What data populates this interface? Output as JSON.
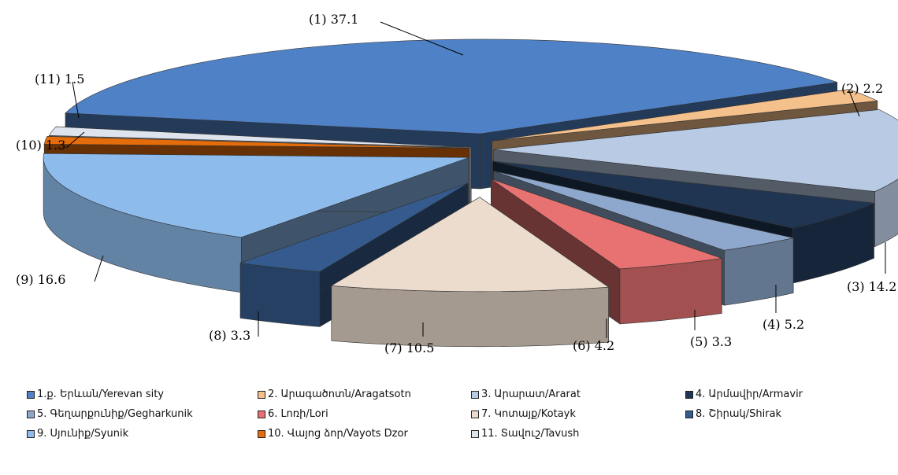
{
  "chart_data": {
    "type": "pie",
    "title": "",
    "slices": [
      {
        "label": "(1) 37.1",
        "legend": "1.ք. Երևան/Yerevan sity",
        "value": 37.1,
        "color": "#4f81c6"
      },
      {
        "label": "(2) 2.2",
        "legend": "2. Արագածոտն/Aragatsotn",
        "value": 2.2,
        "color": "#f4c08c"
      },
      {
        "label": "(3) 14.2",
        "legend": "3. Արարատ/Ararat",
        "value": 14.2,
        "color": "#b9cbe4"
      },
      {
        "label": "(4) 5.2",
        "legend": "4. Արմավիր/Armavir",
        "value": 5.2,
        "color": "#1f3552"
      },
      {
        "label": "(5) 3.3",
        "legend": "5. Գեղարքունիք/Gegharkunik",
        "value": 3.3,
        "color": "#8ea8cd"
      },
      {
        "label": "(6) 4.2",
        "legend": "6. Լոռի/Lori",
        "value": 4.2,
        "color": "#e87272"
      },
      {
        "label": "(7) 10.5",
        "legend": "7. Կոտայք/Kotayk",
        "value": 10.5,
        "color": "#ecdccd"
      },
      {
        "label": "(8) 3.3",
        "legend": "8. Շիրակ/Shirak",
        "value": 3.3,
        "color": "#355b8e"
      },
      {
        "label": "(9) 16.6",
        "legend": "9. Սյունիք/Syunik",
        "value": 16.6,
        "color": "#8dbbec"
      },
      {
        "label": "(10) 1.3",
        "legend": "10. Վայոց ձոր/Vayots Dzor",
        "value": 1.3,
        "color": "#e46c0a"
      },
      {
        "label": "(11) 1.5",
        "legend": "11. Տավուշ/Tavush",
        "value": 1.5,
        "color": "#dde4ee"
      }
    ]
  }
}
